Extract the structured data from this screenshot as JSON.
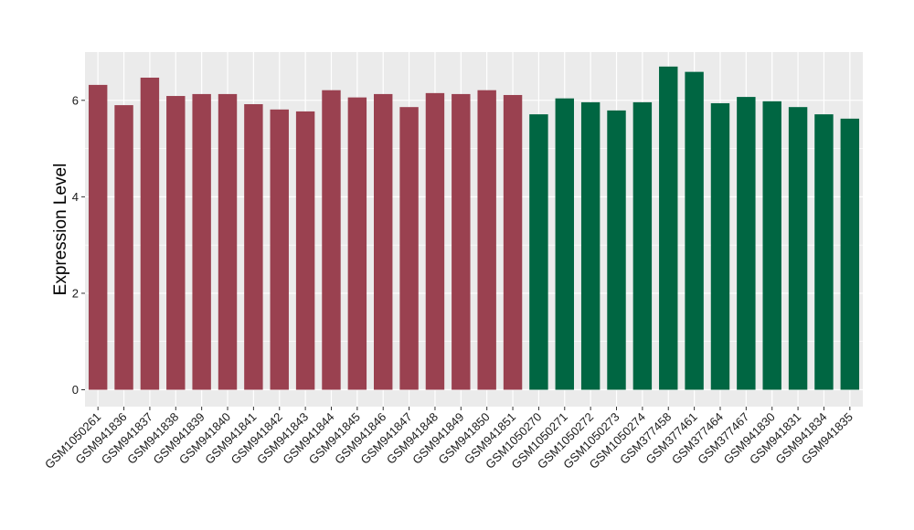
{
  "chart_data": {
    "type": "bar",
    "title": "",
    "xlabel": "",
    "ylabel": "Expression Level",
    "ylim": [
      -0.35,
      7.0
    ],
    "yticks": [
      0,
      2,
      4,
      6
    ],
    "grid": true,
    "legend": "none",
    "categories": [
      "GSM1050261",
      "GSM941836",
      "GSM941837",
      "GSM941838",
      "GSM941839",
      "GSM941840",
      "GSM941841",
      "GSM941842",
      "GSM941843",
      "GSM941844",
      "GSM941845",
      "GSM941846",
      "GSM941847",
      "GSM941848",
      "GSM941849",
      "GSM941850",
      "GSM941851",
      "GSM1050270",
      "GSM1050271",
      "GSM1050272",
      "GSM1050273",
      "GSM1050274",
      "GSM377458",
      "GSM377461",
      "GSM377464",
      "GSM377467",
      "GSM941830",
      "GSM941831",
      "GSM941834",
      "GSM941835"
    ],
    "values": [
      6.32,
      5.9,
      6.47,
      6.09,
      6.13,
      6.13,
      5.92,
      5.81,
      5.77,
      6.21,
      6.06,
      6.13,
      5.86,
      6.15,
      6.13,
      6.21,
      6.11,
      5.71,
      6.04,
      5.96,
      5.79,
      5.96,
      6.7,
      6.59,
      5.94,
      6.07,
      5.98,
      5.86,
      5.71,
      5.62
    ],
    "groups": [
      0,
      0,
      0,
      0,
      0,
      0,
      0,
      0,
      0,
      0,
      0,
      0,
      0,
      0,
      0,
      0,
      0,
      1,
      1,
      1,
      1,
      1,
      1,
      1,
      1,
      1,
      1,
      1,
      1,
      1
    ],
    "group_colors": [
      "#9a4150",
      "#006642"
    ],
    "panel_color": "#ebebeb",
    "grid_color": "#ffffff"
  }
}
